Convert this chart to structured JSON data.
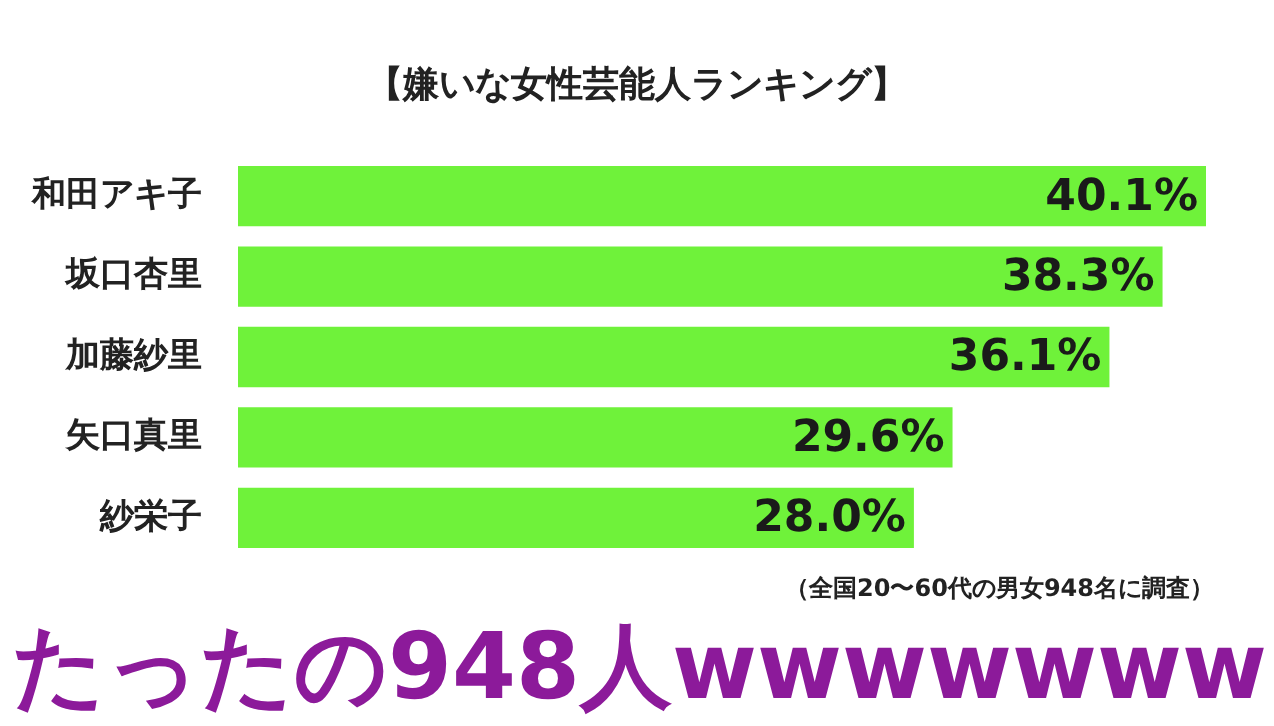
{
  "chart_data": {
    "type": "bar",
    "orientation": "horizontal",
    "title": "【嫌いな女性芸能人ランキング】",
    "categories": [
      "和田アキ子",
      "坂口杏里",
      "加藤紗里",
      "矢口真里",
      "紗栄子"
    ],
    "values": [
      40.1,
      38.3,
      36.1,
      29.6,
      28.0
    ],
    "value_labels": [
      "40.1%",
      "38.3%",
      "36.1%",
      "29.6%",
      "28.0%"
    ],
    "color": "#6ff23a",
    "legend": false,
    "tick_labels": "y",
    "annotations": [
      "（全国20〜60代の男女948名に調査）",
      "たったの948人wwwwwww"
    ]
  }
}
